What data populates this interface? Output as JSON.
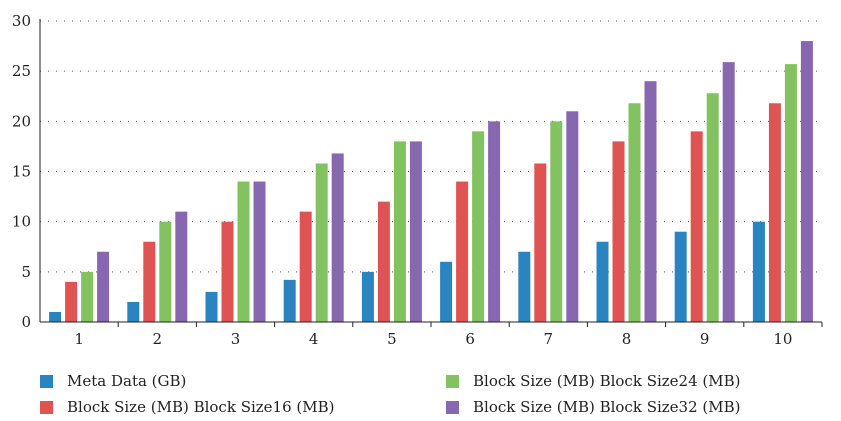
{
  "chart_data": {
    "type": "bar",
    "categories": [
      "1",
      "2",
      "3",
      "4",
      "5",
      "6",
      "7",
      "8",
      "9",
      "10"
    ],
    "series": [
      {
        "name": "Meta Data (GB)",
        "color": "#2a84c0",
        "values": [
          1,
          2,
          3,
          4.2,
          5,
          6,
          7,
          8,
          9,
          10
        ]
      },
      {
        "name": "Block Size (MB) Block Size16 (MB)",
        "color": "#e05353",
        "values": [
          4,
          8,
          10,
          11,
          12,
          14,
          15.8,
          18,
          19,
          21.8
        ]
      },
      {
        "name": "Block Size (MB) Block Size24 (MB)",
        "color": "#82c260",
        "values": [
          5,
          10,
          14,
          15.8,
          18,
          19,
          20,
          21.8,
          22.8,
          25.7
        ]
      },
      {
        "name": "Block Size (MB) Block Size32 (MB)",
        "color": "#8767b0",
        "values": [
          7,
          11,
          14,
          16.8,
          18,
          20,
          21,
          24,
          25.9,
          28
        ]
      }
    ],
    "ylim": [
      0,
      30
    ],
    "yticks": [
      0,
      5,
      10,
      15,
      20,
      25,
      30
    ],
    "grid": true,
    "legend_position": "bottom"
  }
}
